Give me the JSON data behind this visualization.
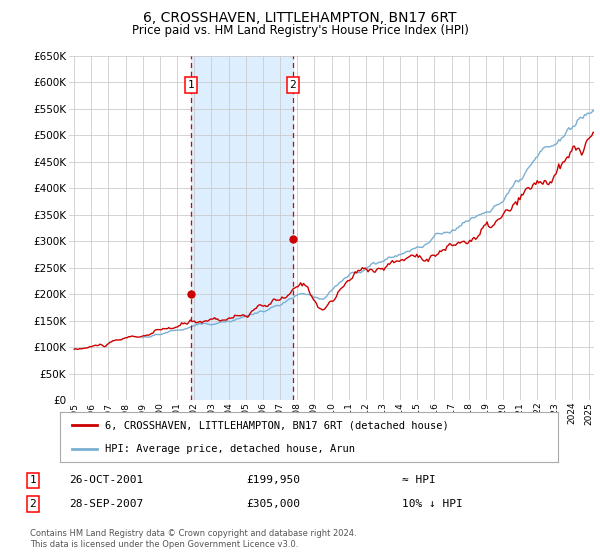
{
  "title": "6, CROSSHAVEN, LITTLEHAMPTON, BN17 6RT",
  "subtitle": "Price paid vs. HM Land Registry's House Price Index (HPI)",
  "ylim": [
    0,
    650000
  ],
  "yticks": [
    0,
    50000,
    100000,
    150000,
    200000,
    250000,
    300000,
    350000,
    400000,
    450000,
    500000,
    550000,
    600000,
    650000
  ],
  "xstart_year": 1995,
  "xend_year": 2025,
  "sale1_year": 2001.82,
  "sale1_price": 199950,
  "sale2_year": 2007.74,
  "sale2_price": 305000,
  "sale1_date": "26-OCT-2001",
  "sale1_price_str": "£199,950",
  "sale1_note": "≈ HPI",
  "sale2_date": "28-SEP-2007",
  "sale2_price_str": "£305,000",
  "sale2_note": "10% ↓ HPI",
  "line_color_red": "#cc0000",
  "line_color_blue": "#7ab0d4",
  "marker_color": "#cc0000",
  "dashed_color": "#dd0000",
  "shaded_color": "#ddeeff",
  "grid_color": "#cccccc",
  "bg_color": "#ffffff",
  "legend_label_red": "6, CROSSHAVEN, LITTLEHAMPTON, BN17 6RT (detached house)",
  "legend_label_blue": "HPI: Average price, detached house, Arun",
  "footer": "Contains HM Land Registry data © Crown copyright and database right 2024.\nThis data is licensed under the Open Government Licence v3.0."
}
